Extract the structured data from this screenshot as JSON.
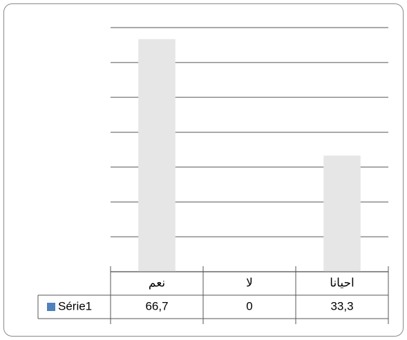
{
  "chart_data": {
    "type": "bar",
    "categories": [
      "نعم",
      "لا",
      "احيانا"
    ],
    "series": [
      {
        "name": "Série1",
        "color": "#e6e6e6",
        "legend_color": "#4f81bd",
        "values": [
          66.7,
          0,
          33.3
        ],
        "value_labels": [
          "66,7",
          "0",
          "33,3"
        ]
      }
    ],
    "ylim": [
      0,
      70
    ],
    "yticks": [
      0,
      10,
      20,
      30,
      40,
      50,
      60,
      70
    ],
    "grid": true
  }
}
